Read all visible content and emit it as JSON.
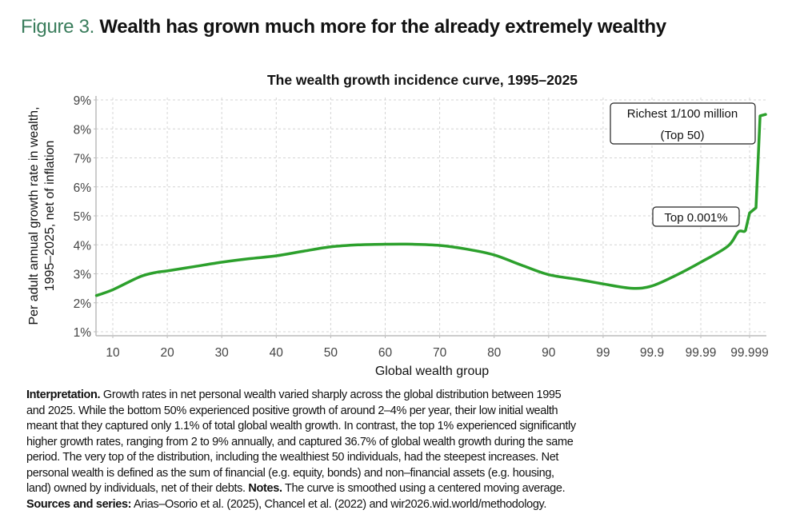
{
  "figure": {
    "number_label": "Figure 3.",
    "title": "Wealth has grown much more for the already extremely wealthy"
  },
  "chart_data": {
    "type": "line",
    "title": "The wealth growth incidence curve, 1995–2025",
    "xlabel": "Global wealth group",
    "ylabel_lines": [
      "Per adult annual growth rate in wealth,",
      "1995–2025, net of inflation"
    ],
    "x_ticks": [
      "10",
      "20",
      "30",
      "40",
      "50",
      "60",
      "70",
      "80",
      "90",
      "99",
      "99.9",
      "99.99",
      "99.999"
    ],
    "y_ticks": [
      "1%",
      "2%",
      "3%",
      "4%",
      "5%",
      "6%",
      "7%",
      "8%",
      "9%"
    ],
    "ylim": [
      1,
      9
    ],
    "grid": true,
    "line_color": "#2ca02c",
    "series": [
      {
        "x": [
          7,
          10,
          15,
          18,
          20,
          25,
          30,
          35,
          40,
          45,
          50,
          55,
          60,
          65,
          70,
          75,
          80,
          85,
          90,
          95,
          99,
          99.74,
          99.9,
          99.968,
          99.99,
          99.9972,
          99.9983,
          99.99879,
          99.999,
          99.99926,
          99.99939,
          99.99953
        ],
        "y": [
          2.25,
          2.45,
          2.9,
          3.05,
          3.1,
          3.25,
          3.4,
          3.52,
          3.62,
          3.78,
          3.93,
          4.0,
          4.02,
          4.02,
          3.98,
          3.85,
          3.65,
          3.3,
          2.97,
          2.8,
          2.65,
          2.5,
          2.58,
          2.95,
          3.4,
          3.95,
          4.45,
          4.5,
          5.1,
          5.28,
          8.45,
          8.5
        ]
      }
    ],
    "annotations": [
      "Richest 1/100 million",
      "(Top 50)",
      "Top 0.001%"
    ]
  },
  "caption": {
    "lines": [
      [
        {
          "b": true,
          "t": "Interpretation."
        },
        {
          "b": false,
          "t": " Growth rates in net personal wealth varied sharply across the global distribution between 1995"
        }
      ],
      [
        {
          "b": false,
          "t": "and 2025. While the bottom 50% experienced positive growth of around 2–4% per year, their low initial wealth"
        }
      ],
      [
        {
          "b": false,
          "t": "meant that they captured only 1.1% of total global wealth growth. In contrast, the top 1% experienced significantly"
        }
      ],
      [
        {
          "b": false,
          "t": "higher growth rates, ranging from 2 to 9% annually, and captured 36.7% of global wealth growth during the same"
        }
      ],
      [
        {
          "b": false,
          "t": "period. The very top of the distribution, including the wealthiest 50 individuals, had the steepest increases. Net"
        }
      ],
      [
        {
          "b": false,
          "t": "personal wealth is defined as the sum of financial (e.g. equity, bonds) and non–financial assets (e.g. housing,"
        }
      ],
      [
        {
          "b": false,
          "t": "land) owned by individuals, net of their debts. "
        },
        {
          "b": true,
          "t": "Notes."
        },
        {
          "b": false,
          "t": " The curve is smoothed using a centered moving average."
        }
      ],
      [
        {
          "b": true,
          "t": "Sources and series:"
        },
        {
          "b": false,
          "t": " Arias–Osorio et al. (2025), Chancel et al. (2022) and wir2026.wid.world/methodology."
        }
      ]
    ]
  }
}
